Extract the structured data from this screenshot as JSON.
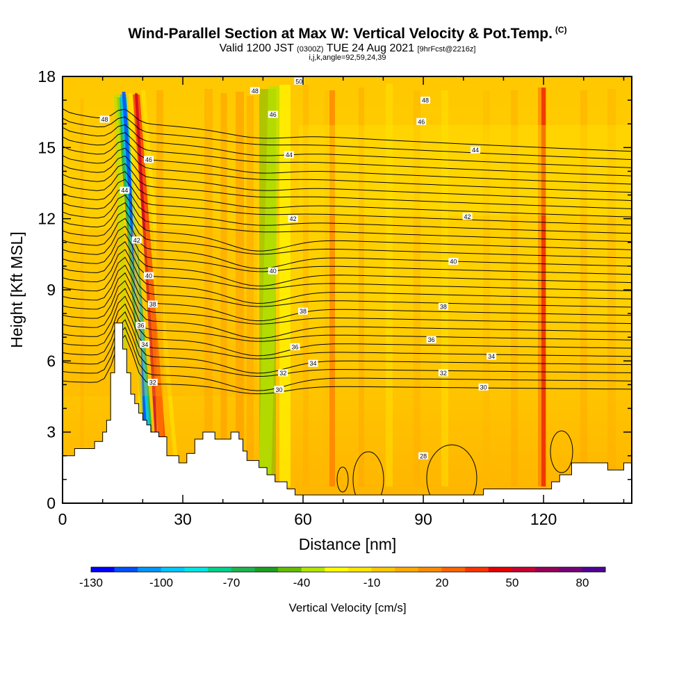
{
  "header": {
    "title": "Wind-Parallel Section at Max W: Vertical Velocity & Pot.Temp.",
    "copyright": "(C)",
    "valid_prefix": "Valid 1200 JST",
    "valid_utc": "(0300Z)",
    "valid_date": "TUE 24 Aug 2021",
    "forecast": "[9hrFcst@2216z]",
    "indices": "i,j,k,angle=92,59,24,39"
  },
  "chart_data": {
    "type": "heatmap",
    "title": "Wind-Parallel Section at Max W: Vertical Velocity & Pot.Temp.",
    "xlabel": "Distance [nm]",
    "ylabel": "Height [Kft MSL]",
    "xlim": [
      0,
      142
    ],
    "ylim": [
      0,
      18
    ],
    "xticks": [
      0,
      30,
      60,
      90,
      120
    ],
    "yticks": [
      0,
      3,
      6,
      9,
      12,
      15,
      18
    ],
    "colorbar": {
      "label": "Vertical Velocity [cm/s]",
      "tick_values": [
        -130,
        -100,
        -70,
        -40,
        -10,
        20,
        50,
        80
      ],
      "tick_labels": [
        "-130",
        "-100",
        "-70",
        "-40",
        "-10",
        "20",
        "50",
        "80"
      ],
      "colors": [
        "#0000ff",
        "#0050ff",
        "#0096ff",
        "#00c8ff",
        "#00e6e6",
        "#00d28c",
        "#1eb450",
        "#1ea01e",
        "#64be00",
        "#b4e600",
        "#ffff00",
        "#ffe600",
        "#ffc800",
        "#ffaa00",
        "#ff8c00",
        "#ff6400",
        "#ff3200",
        "#e60000",
        "#c80032",
        "#96005a",
        "#780078",
        "#500096"
      ]
    },
    "terrain": [
      [
        0,
        2
      ],
      [
        3,
        2
      ],
      [
        3,
        2.3
      ],
      [
        8,
        2.3
      ],
      [
        8,
        2.6
      ],
      [
        10,
        2.6
      ],
      [
        10,
        3
      ],
      [
        11,
        3
      ],
      [
        11,
        3.5
      ],
      [
        12,
        3.5
      ],
      [
        12,
        5.5
      ],
      [
        13,
        5.5
      ],
      [
        13,
        7.6
      ],
      [
        15,
        7.6
      ],
      [
        15,
        6.5
      ],
      [
        16,
        6.5
      ],
      [
        16,
        5.5
      ],
      [
        17,
        5.5
      ],
      [
        17,
        4.6
      ],
      [
        18,
        4.6
      ],
      [
        18,
        4.2
      ],
      [
        19,
        4.2
      ],
      [
        19,
        3.8
      ],
      [
        20,
        3.8
      ],
      [
        20,
        3.5
      ],
      [
        21,
        3.5
      ],
      [
        21,
        3.3
      ],
      [
        22,
        3.3
      ],
      [
        22,
        3
      ],
      [
        24,
        3
      ],
      [
        24,
        2.8
      ],
      [
        26,
        2.8
      ],
      [
        26,
        2
      ],
      [
        29,
        2
      ],
      [
        29,
        1.7
      ],
      [
        31,
        1.7
      ],
      [
        31,
        2.1
      ],
      [
        33,
        2.1
      ],
      [
        33,
        2.7
      ],
      [
        35,
        2.7
      ],
      [
        35,
        3
      ],
      [
        38,
        3
      ],
      [
        38,
        2.7
      ],
      [
        42,
        2.7
      ],
      [
        42,
        3
      ],
      [
        44,
        3
      ],
      [
        44,
        2.7
      ],
      [
        45,
        2.7
      ],
      [
        45,
        2.2
      ],
      [
        46,
        2.2
      ],
      [
        46,
        1.8
      ],
      [
        49,
        1.8
      ],
      [
        49,
        1.5
      ],
      [
        51,
        1.5
      ],
      [
        51,
        1.2
      ],
      [
        53,
        1.2
      ],
      [
        53,
        0.9
      ],
      [
        56,
        0.9
      ],
      [
        56,
        0.6
      ],
      [
        58,
        0.6
      ],
      [
        58,
        0.35
      ],
      [
        105,
        0.35
      ],
      [
        105,
        0.6
      ],
      [
        122,
        0.6
      ],
      [
        122,
        0.9
      ],
      [
        124,
        0.9
      ],
      [
        124,
        1.2
      ],
      [
        127,
        1.2
      ],
      [
        127,
        1.7
      ],
      [
        136,
        1.7
      ],
      [
        136,
        1.4
      ],
      [
        140,
        1.4
      ],
      [
        140,
        1.7
      ],
      [
        142,
        1.7
      ]
    ],
    "isentropes": [
      {
        "value": 28,
        "label": "28",
        "label_x": 90,
        "label_y": 2.0
      },
      {
        "value": 30,
        "label": "30",
        "label_x": 54,
        "label_y": 4.8
      },
      {
        "value": 30,
        "label": "30",
        "label_x": 105,
        "label_y": 4.9
      },
      {
        "value": 32,
        "label": "32",
        "label_x": 22.5,
        "label_y": 5.1
      },
      {
        "value": 32,
        "label": "32",
        "label_x": 55,
        "label_y": 5.5
      },
      {
        "value": 32,
        "label": "32",
        "label_x": 95,
        "label_y": 5.5
      },
      {
        "value": 34,
        "label": "34",
        "label_x": 20.5,
        "label_y": 6.7
      },
      {
        "value": 34,
        "label": "34",
        "label_x": 62.5,
        "label_y": 5.9
      },
      {
        "value": 34,
        "label": "34",
        "label_x": 107,
        "label_y": 6.2
      },
      {
        "value": 36,
        "label": "36",
        "label_x": 19.5,
        "label_y": 7.5
      },
      {
        "value": 36,
        "label": "36",
        "label_x": 58,
        "label_y": 6.6
      },
      {
        "value": 36,
        "label": "36",
        "label_x": 92,
        "label_y": 6.9
      },
      {
        "value": 38,
        "label": "38",
        "label_x": 22.5,
        "label_y": 8.4
      },
      {
        "value": 38,
        "label": "38",
        "label_x": 60,
        "label_y": 8.1
      },
      {
        "value": 38,
        "label": "38",
        "label_x": 95,
        "label_y": 8.3
      },
      {
        "value": 40,
        "label": "40",
        "label_x": 21.5,
        "label_y": 9.6
      },
      {
        "value": 40,
        "label": "40",
        "label_x": 52.5,
        "label_y": 9.8
      },
      {
        "value": 40,
        "label": "40",
        "label_x": 97.5,
        "label_y": 10.2
      },
      {
        "value": 42,
        "label": "42",
        "label_x": 18.5,
        "label_y": 11.1
      },
      {
        "value": 42,
        "label": "42",
        "label_x": 57.5,
        "label_y": 12.0
      },
      {
        "value": 42,
        "label": "42",
        "label_x": 101,
        "label_y": 12.1
      },
      {
        "value": 44,
        "label": "44",
        "label_x": 15.5,
        "label_y": 13.2
      },
      {
        "value": 44,
        "label": "44",
        "label_x": 56.5,
        "label_y": 14.7
      },
      {
        "value": 44,
        "label": "44",
        "label_x": 103,
        "label_y": 14.9
      },
      {
        "value": 46,
        "label": "46",
        "label_x": 21.5,
        "label_y": 14.5
      },
      {
        "value": 46,
        "label": "46",
        "label_x": 52.5,
        "label_y": 16.4
      },
      {
        "value": 46,
        "label": "46",
        "label_x": 89.5,
        "label_y": 16.1
      },
      {
        "value": 48,
        "label": "48",
        "label_x": 10.5,
        "label_y": 16.2
      },
      {
        "value": 48,
        "label": "48",
        "label_x": 48,
        "label_y": 17.4
      },
      {
        "value": 48,
        "label": "48",
        "label_x": 90.5,
        "label_y": 17.0
      },
      {
        "value": 50,
        "label": "50",
        "label_x": 59,
        "label_y": 17.8
      }
    ]
  }
}
